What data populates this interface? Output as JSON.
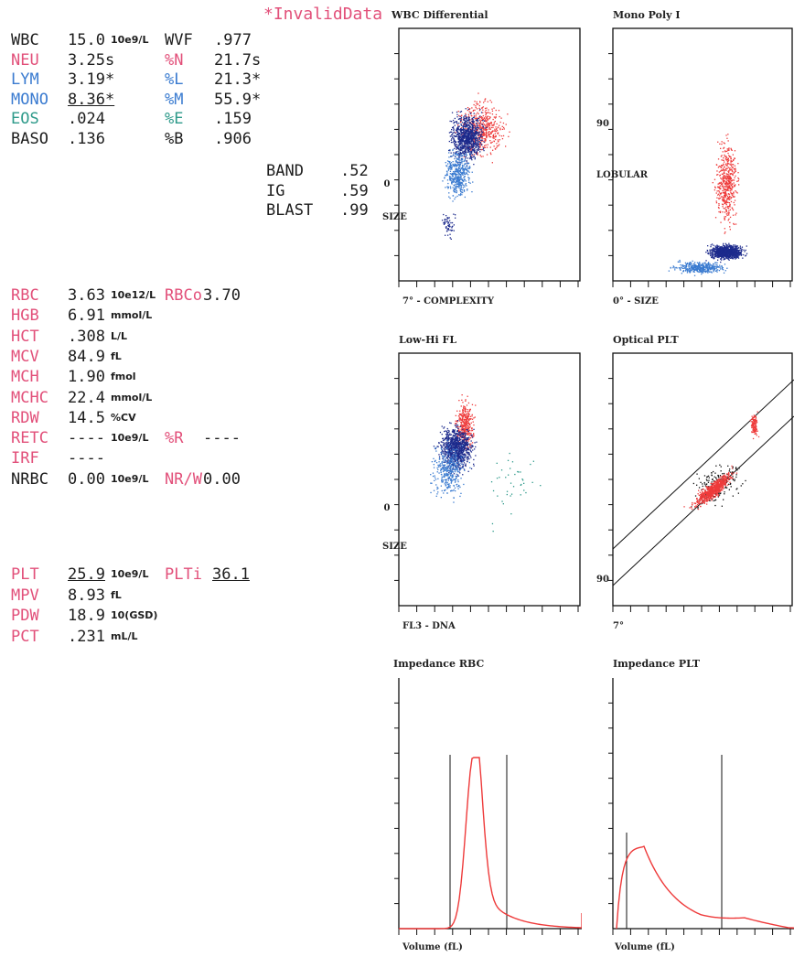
{
  "header": {
    "invalid_flag": "*InvalidData"
  },
  "wbc_block": [
    {
      "label": "WBC",
      "value": "15.0",
      "unit": "10e9/L",
      "label2": "WVF",
      "value2": ".977",
      "c1": "",
      "c2": ""
    },
    {
      "label": "NEU",
      "value": "3.25s",
      "unit": "",
      "label2": "%N",
      "value2": "21.7s",
      "c1": "pk",
      "c2": "pk"
    },
    {
      "label": "LYM",
      "value": "3.19*",
      "unit": "",
      "label2": "%L",
      "value2": "21.3*",
      "c1": "bl",
      "c2": "bl"
    },
    {
      "label": "MONO",
      "value": "8.36*",
      "unit": "",
      "label2": "%M",
      "value2": "55.9*",
      "c1": "bl",
      "c2": "bl"
    },
    {
      "label": "EOS",
      "value": ".024",
      "unit": "",
      "label2": "%E",
      "value2": ".159",
      "c1": "tl",
      "c2": "tl"
    },
    {
      "label": "BASO",
      "value": ".136",
      "unit": "",
      "label2": "%B",
      "value2": ".906",
      "c1": "",
      "c2": ""
    }
  ],
  "extra_block": [
    {
      "label": "BAND",
      "value": ".52"
    },
    {
      "label": "IG",
      "value": ".59"
    },
    {
      "label": "BLAST",
      "value": ".99"
    }
  ],
  "rbc_block": [
    {
      "label": "RBC",
      "value": "3.63",
      "unit": "10e12/L",
      "label2": "RBCo",
      "value2": "3.70"
    },
    {
      "label": "HGB",
      "value": "6.91",
      "unit": "mmol/L",
      "label2": "",
      "value2": ""
    },
    {
      "label": "HCT",
      "value": ".308",
      "unit": "L/L",
      "label2": "",
      "value2": ""
    },
    {
      "label": "MCV",
      "value": "84.9",
      "unit": "fL",
      "label2": "",
      "value2": ""
    },
    {
      "label": "MCH",
      "value": "1.90",
      "unit": "fmol",
      "label2": "",
      "value2": ""
    },
    {
      "label": "MCHC",
      "value": "22.4",
      "unit": "mmol/L",
      "label2": "",
      "value2": ""
    },
    {
      "label": "RDW",
      "value": "14.5",
      "unit": "%CV",
      "label2": "",
      "value2": ""
    },
    {
      "label": "RETC",
      "value": "----",
      "unit": "10e9/L",
      "label2": "%R",
      "value2": "----"
    },
    {
      "label": "IRF",
      "value": "----",
      "unit": "",
      "label2": "",
      "value2": ""
    },
    {
      "label": "NRBC",
      "value": "0.00",
      "unit": "10e9/L",
      "label2": "NR/W",
      "value2": "0.00"
    }
  ],
  "plt_block": [
    {
      "label": "PLT",
      "value": "25.9",
      "unit": "10e9/L",
      "label2": "PLTi",
      "value2": "36.1"
    },
    {
      "label": "MPV",
      "value": "8.93",
      "unit": "fL",
      "label2": "",
      "value2": ""
    },
    {
      "label": "PDW",
      "value": "18.9",
      "unit": "10(GSD)",
      "label2": "",
      "value2": ""
    },
    {
      "label": "PCT",
      "value": ".231",
      "unit": "mL/L",
      "label2": "",
      "value2": ""
    }
  ],
  "plots": {
    "wbc_diff": {
      "title": "WBC Differential",
      "xlabel": "7° - COMPLEXITY",
      "ylabel_top": "0",
      "ylabel": "SIZE"
    },
    "mono_poly": {
      "title": "Mono Poly I",
      "xlabel": "0° - SIZE",
      "ylabel_top": "90",
      "ylabel": "LOBULAR"
    },
    "low_hi_fl": {
      "title": "Low-Hi FL",
      "xlabel": "FL3 - DNA",
      "ylabel_top": "0",
      "ylabel": "SIZE"
    },
    "optical_plt": {
      "title": "Optical PLT",
      "xlabel": "7°",
      "ylabel_top": "90"
    },
    "imp_rbc": {
      "title": "Impedance RBC",
      "xlabel": "Volume (fL)"
    },
    "imp_plt": {
      "title": "Impedance PLT",
      "xlabel": "Volume (fL)"
    }
  },
  "colors": {
    "pink": "#e2507a",
    "blue": "#3a7bd0",
    "teal": "#2e9a8a",
    "navy": "#1c2a8c",
    "red": "#ee3a3a"
  }
}
